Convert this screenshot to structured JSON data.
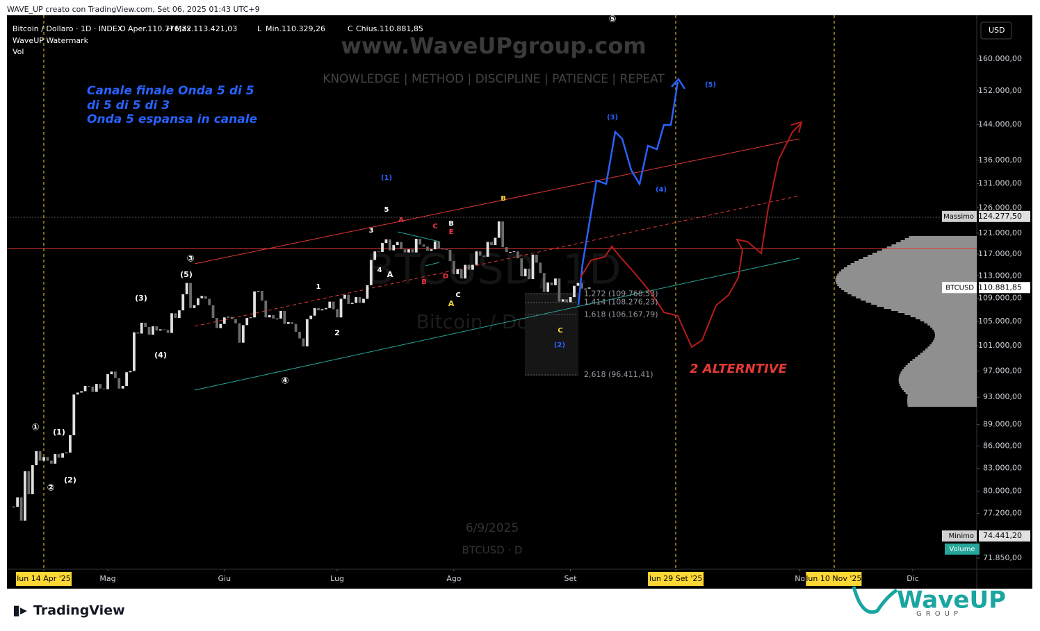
{
  "header": {
    "credit": "WAVE_UP creato con TradingView.com, Set 06, 2025 01:43 UTC+9"
  },
  "chart_data": {
    "type": "candlestick",
    "title": "Bitcoin / Dollaro · 1D · INDEX",
    "ohlc_legend": [
      {
        "key": "O",
        "text": "Aper.110.776,72"
      },
      {
        "key": "H",
        "text": "Max.113.421,03"
      },
      {
        "key": "L",
        "text": "Min.110.329,26"
      },
      {
        "key": "C",
        "text": "Chius.110.881,85"
      }
    ],
    "indicators": [
      "WaveUP Watermark",
      "Vol"
    ],
    "currency": "USD",
    "up_color": "#26a69a",
    "down_color": "#ef5350",
    "log_scale": true,
    "grid": false,
    "close": [
      78000,
      79200,
      76300,
      82600,
      79600,
      83400,
      85300,
      84000,
      84500,
      84000,
      83600,
      84900,
      84400,
      85000,
      85100,
      87500,
      93400,
      93700,
      93900,
      94700,
      94600,
      93800,
      95000,
      94300,
      94200,
      96500,
      96900,
      95900,
      94300,
      94700,
      96800,
      97000,
      103200,
      103000,
      104800,
      104100,
      102800,
      104200,
      103500,
      103700,
      103600,
      103100,
      106400,
      105600,
      106900,
      109700,
      111700,
      107300,
      107800,
      109000,
      109400,
      108900,
      107800,
      105600,
      103900,
      104600,
      105700,
      105800,
      105400,
      104700,
      101500,
      104400,
      105600,
      105700,
      110200,
      110300,
      108600,
      105700,
      106100,
      105500,
      105500,
      106800,
      104600,
      104900,
      104600,
      103300,
      102200,
      100900,
      105400,
      106000,
      107300,
      106900,
      107100,
      107300,
      108400,
      107100,
      105700,
      108900,
      109600,
      108000,
      108200,
      109200,
      108200,
      108900,
      111300,
      115900,
      117500,
      117400,
      119100,
      119800,
      117700,
      118700,
      119300,
      117900,
      117300,
      117900,
      117300,
      119900,
      118800,
      118400,
      117600,
      117900,
      119400,
      118000,
      117900,
      117800,
      115700,
      113300,
      114200,
      112500,
      115000,
      114100,
      115000,
      117500,
      116700,
      116500,
      119300,
      118700,
      120100,
      123300,
      118300,
      117400,
      117400,
      117500,
      116200,
      112900,
      114300,
      112400,
      116900,
      115400,
      113500,
      110100,
      111800,
      111300,
      112500,
      108400,
      108800,
      108300,
      109200,
      111200,
      111700,
      110700,
      110700,
      110881.85
    ],
    "xlim": [
      -1.8,
      256
    ],
    "xticks": [
      {
        "value": 8,
        "label": "lun 14 Apr '25"
      },
      {
        "value": 25,
        "label": "Mag"
      },
      {
        "value": 56,
        "label": "Giu"
      },
      {
        "value": 86,
        "label": "Lug"
      },
      {
        "value": 117,
        "label": "Ago"
      },
      {
        "value": 148,
        "label": "Set"
      },
      {
        "value": 176,
        "label": "lun 29 Set '25"
      },
      {
        "value": 209,
        "label": "No"
      },
      {
        "value": 218,
        "label": "lun 10 Nov '25"
      },
      {
        "value": 239,
        "label": "Dic"
      }
    ],
    "ylim": [
      70580,
      171600
    ],
    "yticks": [
      {
        "value": 160000,
        "label": "160.000,00"
      },
      {
        "value": 152000,
        "label": "152.000,00"
      },
      {
        "value": 144000,
        "label": "144.000,00"
      },
      {
        "value": 136000,
        "label": "136.000,00"
      },
      {
        "value": 131000,
        "label": "131.000,00"
      },
      {
        "value": 126000,
        "label": "126.000,00"
      },
      {
        "value": 121000,
        "label": "121.000,00"
      },
      {
        "value": 117000,
        "label": "117.000,00"
      },
      {
        "value": 113000,
        "label": "113.000,00"
      },
      {
        "value": 109000,
        "label": "109.000,00"
      },
      {
        "value": 105000,
        "label": "105.000,00"
      },
      {
        "value": 101000,
        "label": "101.000,00"
      },
      {
        "value": 97000,
        "label": "97.000,00"
      },
      {
        "value": 93000,
        "label": "93.000,00"
      },
      {
        "value": 89000,
        "label": "89.000,00"
      },
      {
        "value": 86000,
        "label": "86.000,00"
      },
      {
        "value": 83000,
        "label": "83.000,00"
      },
      {
        "value": 80000,
        "label": "80.000,00"
      },
      {
        "value": 77200,
        "label": "77.200,00"
      },
      {
        "value": 71850,
        "label": "71.850,00"
      }
    ],
    "price_labels": [
      {
        "name": "Massimo",
        "value": 124277.5,
        "label": "124.277,50"
      },
      {
        "name": "BTCUSD",
        "value": 110881.85,
        "label": "110.881,85"
      },
      {
        "name": "Minimo",
        "value": 74441.2,
        "label": "74.441,20"
      }
    ],
    "volume_tag": "Volume",
    "fib_levels": [
      {
        "value": 109768.53,
        "label": "1,272 (109.768,53)"
      },
      {
        "value": 108276.23,
        "label": "1,414 (108.276,23)"
      },
      {
        "value": 106167.79,
        "label": "1,618 (106.167,79)"
      },
      {
        "value": 96411.41,
        "label": "2,618 (96.411,41)"
      }
    ],
    "annotations": [
      {
        "text": "Canale finale Onda 5 di 5",
        "color": "#2962ff"
      },
      {
        "text": "di 5 di 5 di 3",
        "color": "#2962ff"
      },
      {
        "text": "Onda 5 espansa in canale",
        "color": "#2962ff"
      },
      {
        "text": "2 ALTERNTIVE",
        "color": "#e53935"
      },
      {
        "text": "①",
        "color": "#ffffff"
      },
      {
        "text": "(1)",
        "color": "#ffffff"
      },
      {
        "text": "②",
        "color": "#ffffff"
      },
      {
        "text": "(2)",
        "color": "#ffffff"
      },
      {
        "text": "(3)",
        "color": "#ffffff"
      },
      {
        "text": "(4)",
        "color": "#ffffff"
      },
      {
        "text": "(5)",
        "color": "#ffffff"
      },
      {
        "text": "③",
        "color": "#ffffff"
      },
      {
        "text": "④",
        "color": "#ffffff"
      },
      {
        "text": "1",
        "color": "#ffffff"
      },
      {
        "text": "2",
        "color": "#ffffff"
      },
      {
        "text": "3",
        "color": "#ffffff"
      },
      {
        "text": "4",
        "color": "#ffffff"
      },
      {
        "text": "5",
        "color": "#ffffff"
      },
      {
        "text": "A",
        "color": "#ffffff"
      },
      {
        "text": "A",
        "color": "#f23645"
      },
      {
        "text": "B",
        "color": "#f23645"
      },
      {
        "text": "C",
        "color": "#f23645"
      },
      {
        "text": "D",
        "color": "#f23645"
      },
      {
        "text": "E",
        "color": "#f23645"
      },
      {
        "text": "B",
        "color": "#ffffff"
      },
      {
        "text": "C",
        "color": "#ffffff"
      },
      {
        "text": "A",
        "color": "#fdd835"
      },
      {
        "text": "B",
        "color": "#fdd835"
      },
      {
        "text": "C",
        "color": "#fdd835"
      },
      {
        "text": "(1)",
        "color": "#2962ff"
      },
      {
        "text": "(2)",
        "color": "#2962ff"
      },
      {
        "text": "(3)",
        "color": "#2962ff"
      },
      {
        "text": "(4)",
        "color": "#2962ff"
      },
      {
        "text": "(5)",
        "color": "#2962ff"
      },
      {
        "text": "⑤",
        "color": "#ffffff"
      }
    ]
  },
  "watermark": {
    "site": "www.WaveUPgroup.com",
    "motto": "KNOWLEDGE | METHOD | DISCIPLINE | PATIENCE | REPEAT",
    "symbol": "BTCUSD, 1D",
    "name": "Bitcoin / Dollaro",
    "date": "6/9/2025",
    "ticker": "BTCUSD · D"
  },
  "footer": {
    "platform": "TradingView",
    "brand": "WaveUP",
    "brand_sub": "GROUP"
  }
}
